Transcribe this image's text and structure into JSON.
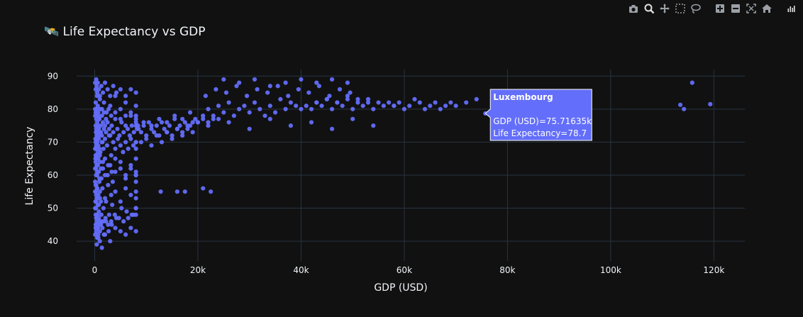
{
  "colors": {
    "background": "#111111",
    "grid": "#283442",
    "marker": "#636efa",
    "text": "#f2f5fa",
    "tick_text": "#f2f5fa",
    "hover_border": "#ffffff"
  },
  "modebar": {
    "buttons": [
      "camera-icon",
      "zoom-icon",
      "pan-icon",
      "box-select-icon",
      "lasso-icon",
      "zoom-in-icon",
      "zoom-out-icon",
      "autoscale-icon",
      "reset-axes-icon",
      "plotly-logo-icon"
    ]
  },
  "hover": {
    "title": "Luxembourg",
    "line1": "GDP (USD)=75.71635k",
    "line2": "Life Expectancy=78.7"
  },
  "chart_data": {
    "type": "scatter",
    "title": "🛰️ Life Expectancy vs GDP",
    "title_icon": "satellite-emoji",
    "xlabel": "GDP (USD)",
    "ylabel": "Life Expectancy",
    "xlim": [
      -3500,
      126000
    ],
    "ylim": [
      34,
      92
    ],
    "xticks": [
      0,
      20000,
      40000,
      60000,
      80000,
      100000,
      120000
    ],
    "xtick_labels": [
      "0",
      "20k",
      "40k",
      "60k",
      "80k",
      "100k",
      "120k"
    ],
    "yticks": [
      40,
      50,
      60,
      70,
      80,
      90
    ],
    "ytick_labels": [
      "40",
      "50",
      "60",
      "70",
      "80",
      "90"
    ],
    "grid": true,
    "series": [
      {
        "x": [
          200,
          300,
          400,
          500,
          600,
          700,
          800,
          900,
          1000,
          1200,
          1400,
          1600,
          1800,
          2000,
          2200,
          2500,
          2800,
          3000,
          3300,
          3600,
          4000,
          4400,
          4800,
          5200,
          5600,
          6000,
          6400,
          6800,
          7200,
          7600,
          8000,
          8200,
          8400,
          200,
          300,
          500,
          700,
          900,
          1100,
          1400,
          1700,
          2000,
          2400,
          2800,
          3200,
          3600,
          4000,
          4500,
          5000,
          5500,
          6000,
          6500,
          7000,
          7500,
          8000,
          150,
          250,
          350,
          450,
          600,
          800,
          1000,
          1300,
          1600,
          2000,
          2500,
          3000,
          3500,
          4000,
          5000,
          6000,
          7000,
          8000,
          100,
          200,
          300,
          400,
          500,
          700,
          900,
          1200,
          1500,
          2000,
          2600,
          3200,
          4000,
          5000,
          6000,
          7000,
          8000,
          100,
          200,
          300,
          400,
          600,
          800,
          1000,
          1300,
          1700,
          2200,
          2800,
          3400,
          4200,
          5200,
          6200,
          7200,
          8000,
          100,
          200,
          300,
          400,
          500,
          700,
          900,
          1200,
          1600,
          2000,
          2600,
          3300,
          4000,
          5000,
          6000,
          7000,
          8000,
          100,
          200,
          300,
          450,
          600,
          800,
          1000,
          1400,
          1800,
          2300,
          3000,
          4000,
          5000,
          6000,
          7000,
          8000,
          100,
          200,
          300,
          400,
          500,
          600,
          800,
          1000,
          1300,
          1600,
          2000,
          2500,
          3000,
          3600,
          4200,
          5000,
          6000,
          7000,
          8000,
          100,
          200,
          300,
          400,
          500,
          700,
          900,
          1100,
          1400,
          1800,
          2200,
          2700,
          3200,
          4000,
          5000,
          6000,
          7000,
          8000,
          200,
          300,
          400,
          500,
          600,
          800,
          1000,
          1300,
          1700,
          2100,
          2600,
          3200,
          3900,
          4700,
          5600,
          6500,
          7500,
          100,
          200,
          300,
          400,
          500,
          600,
          700,
          800,
          1000,
          1200,
          1500,
          1800,
          2200,
          2700,
          3300,
          4000,
          5000,
          6000,
          7000,
          8000,
          100,
          150,
          200,
          250,
          300,
          350,
          400,
          500,
          600,
          700,
          800,
          900,
          1000,
          1200,
          1500,
          100,
          150,
          200,
          250,
          300,
          400,
          500,
          600,
          800,
          1000,
          400,
          700,
          1000,
          1400,
          2000,
          3000,
          8000,
          8000,
          8000,
          8000,
          8000,
          8000,
          8000,
          8000,
          8000,
          8000,
          8500,
          9000,
          9500,
          10000,
          10500,
          11000,
          11500,
          12000,
          12500,
          13000,
          13500,
          14000,
          14500,
          15000,
          15500,
          16000,
          16500,
          17000,
          17500,
          18000,
          18500,
          19000,
          19500,
          9000,
          10000,
          11000,
          12000,
          13000,
          14000,
          15000,
          16000,
          17000,
          18000,
          19000,
          20000,
          9500,
          11000,
          12500,
          14000,
          15500,
          17000,
          18500,
          21000,
          22000,
          23000,
          24000,
          25000,
          26000,
          27000,
          28000,
          29000,
          30000,
          31000,
          32000,
          33000,
          34000,
          35000,
          36000,
          37000,
          38000,
          39000,
          40000,
          21500,
          23500,
          25500,
          27500,
          29500,
          31500,
          33500,
          35500,
          37500,
          39500,
          41500,
          43500,
          45500,
          47500,
          49500,
          41000,
          42000,
          43000,
          44000,
          45000,
          46000,
          47000,
          48000,
          49000,
          50000,
          51000,
          52000,
          53000,
          54000,
          55000,
          56000,
          57000,
          58000,
          22000,
          26000,
          30000,
          34000,
          38000,
          42000,
          46000,
          50000,
          54000,
          20000,
          21000,
          22000,
          23000,
          24000,
          25000,
          28000,
          31000,
          34000,
          37000,
          40000,
          43000,
          46000,
          49000,
          43000,
          45000,
          47000,
          49000,
          51000,
          53000,
          58000,
          59000,
          60000,
          61000,
          62000,
          63000,
          64000,
          65000,
          66000,
          67000,
          68000,
          69000,
          70000,
          72000,
          74000,
          12800,
          16000,
          17500,
          21000,
          22500,
          113500,
          114200,
          115800,
          119300,
          75716
        ],
        "y": [
          75,
          74,
          73,
          76,
          72,
          75,
          74,
          77,
          73,
          75,
          72,
          76,
          74,
          75,
          73,
          76,
          74,
          72,
          75,
          73,
          77,
          74,
          72,
          76,
          73,
          75,
          74,
          72,
          75,
          73,
          76,
          74,
          75,
          70,
          68,
          71,
          69,
          72,
          67,
          70,
          68,
          71,
          69,
          72,
          66,
          70,
          68,
          71,
          69,
          67,
          70,
          68,
          71,
          69,
          70,
          65,
          62,
          66,
          60,
          63,
          61,
          64,
          59,
          62,
          65,
          60,
          63,
          58,
          61,
          64,
          59,
          62,
          60,
          58,
          55,
          57,
          53,
          56,
          54,
          58,
          52,
          56,
          53,
          57,
          54,
          55,
          52,
          56,
          54,
          53,
          50,
          48,
          52,
          47,
          51,
          49,
          53,
          46,
          50,
          52,
          48,
          51,
          47,
          50,
          49,
          48,
          50,
          62,
          64,
          60,
          63,
          61,
          65,
          59,
          62,
          64,
          60,
          63,
          61,
          65,
          62,
          60,
          63,
          61,
          80,
          82,
          79,
          84,
          81,
          78,
          83,
          80,
          82,
          79,
          81,
          84,
          80,
          82,
          78,
          81,
          88,
          86,
          89,
          87,
          85,
          88,
          86,
          84,
          87,
          85,
          88,
          86,
          84,
          87,
          85,
          86,
          84,
          86,
          85,
          78,
          79,
          77,
          80,
          78,
          79,
          77,
          80,
          78,
          79,
          77,
          80,
          78,
          79,
          77,
          78,
          79,
          77,
          45,
          47,
          46,
          48,
          44,
          47,
          45,
          48,
          46,
          47,
          45,
          46,
          48,
          47,
          46,
          47,
          48,
          42,
          44,
          43,
          45,
          41,
          44,
          42,
          46,
          43,
          45,
          44,
          42,
          46,
          43,
          45,
          44,
          43,
          42,
          44,
          43,
          68,
          71,
          66,
          73,
          69,
          65,
          72,
          70,
          67,
          74,
          71,
          68,
          66,
          73,
          70,
          55,
          52,
          57,
          50,
          54,
          48,
          56,
          53,
          51,
          55,
          39,
          41,
          40,
          38,
          42,
          40,
          50,
          55,
          60,
          65,
          70,
          75,
          48,
          58,
          68,
          78,
          74,
          73,
          75,
          72,
          76,
          74,
          73,
          75,
          72,
          76,
          74,
          73,
          75,
          72,
          77,
          74,
          75,
          73,
          76,
          74,
          75,
          76,
          77,
          70,
          71,
          69,
          72,
          70,
          73,
          71,
          74,
          72,
          75,
          73,
          76,
          76,
          75,
          77,
          76,
          78,
          77,
          79,
          78,
          80,
          77,
          81,
          79,
          82,
          78,
          80,
          81,
          79,
          82,
          80,
          78,
          81,
          79,
          83,
          80,
          82,
          81,
          80,
          84,
          86,
          85,
          87,
          84,
          86,
          85,
          87,
          84,
          86,
          85,
          87,
          84,
          86,
          85,
          81,
          80,
          82,
          81,
          83,
          80,
          82,
          81,
          83,
          80,
          82,
          81,
          83,
          80,
          82,
          81,
          82,
          81,
          75,
          76,
          74,
          77,
          75,
          76,
          74,
          77,
          75,
          76,
          77,
          76,
          78,
          77,
          89,
          88,
          89,
          87,
          88,
          89,
          88,
          89,
          88,
          82,
          83,
          82,
          84,
          83,
          82,
          81,
          82,
          80,
          81,
          83,
          82,
          80,
          81,
          82,
          80,
          81,
          82,
          81,
          82,
          83,
          55,
          55,
          55,
          56,
          55,
          81.3,
          80,
          88,
          81.5,
          78.7
        ]
      }
    ]
  }
}
